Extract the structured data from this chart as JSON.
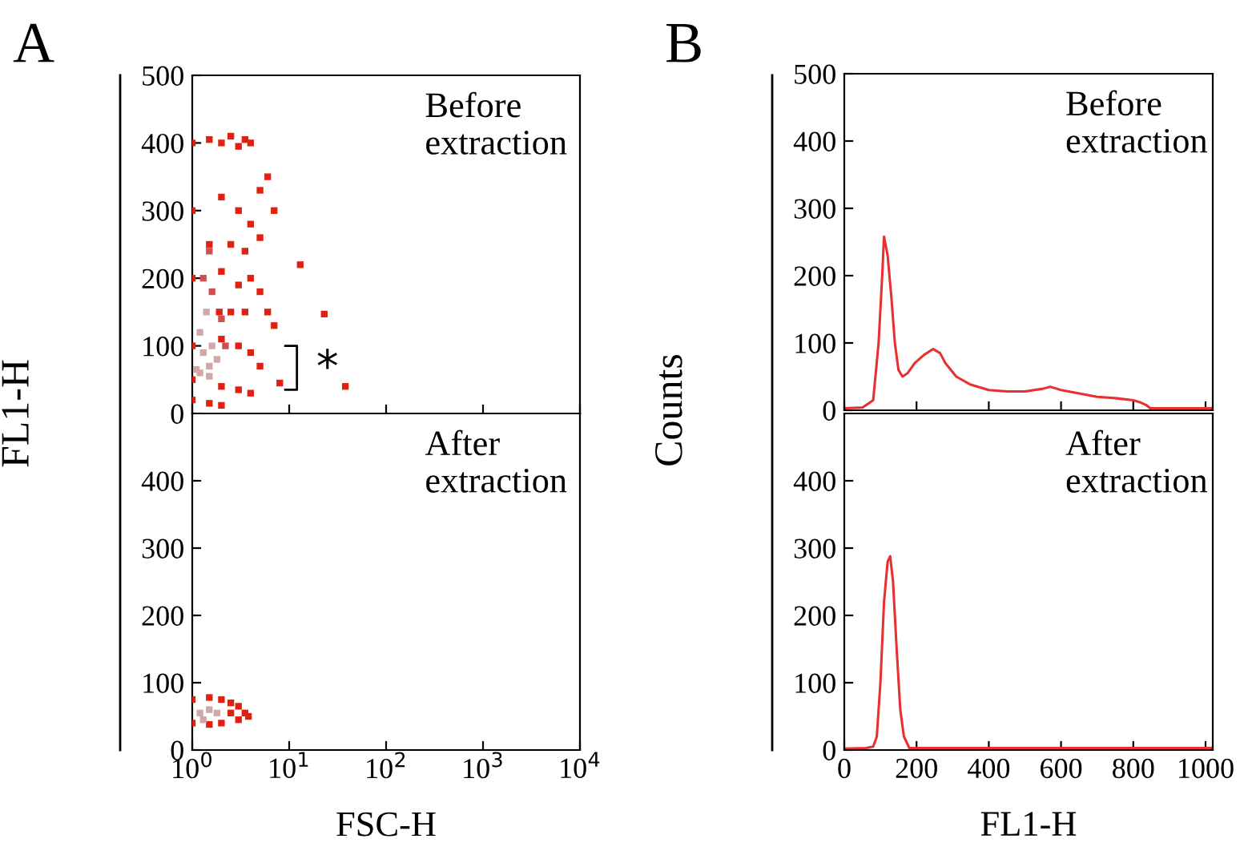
{
  "chart_data": [
    {
      "type": "scatter",
      "title": "A",
      "ylabel": "FL1-H",
      "log": "x",
      "xlim": [
        1,
        10000
      ],
      "xticks": [
        1,
        10,
        100,
        1000,
        10000
      ],
      "ylim": [
        0,
        500
      ],
      "yticks": [
        0,
        100,
        200,
        300,
        400,
        500
      ],
      "tick_labels": "y",
      "marker": "square",
      "grid": false,
      "annotations": [
        "Before\nextraction",
        "*"
      ],
      "series": [
        {
          "color": "#e02010",
          "x": [
            1,
            1.5,
            2,
            2.5,
            3,
            3.5,
            4,
            1,
            2,
            3,
            4,
            5,
            1,
            2,
            3,
            4,
            5,
            6,
            7,
            1,
            2,
            3,
            4,
            5,
            1,
            2,
            3,
            4,
            1,
            1.5,
            2,
            8,
            13,
            23,
            38,
            6,
            7,
            5,
            1.5,
            2.5,
            3.5,
            1.9,
            2.5,
            3.5
          ],
          "values": [
            400,
            405,
            400,
            410,
            395,
            405,
            400,
            300,
            320,
            300,
            280,
            260,
            200,
            210,
            190,
            200,
            180,
            150,
            130,
            100,
            110,
            100,
            90,
            70,
            50,
            40,
            35,
            30,
            20,
            15,
            12,
            45,
            220,
            147,
            40,
            350,
            300,
            330,
            250,
            250,
            240,
            150,
            150,
            150
          ]
        },
        {
          "color": "#d05050",
          "x": [
            1.3,
            1.6,
            2,
            2.2,
            1.5
          ],
          "values": [
            200,
            180,
            140,
            100,
            240
          ]
        },
        {
          "color": "#d0a8a8",
          "x": [
            1.2,
            1.5,
            1.3,
            1.6,
            1.2,
            1.4,
            1.8,
            1.1,
            1.5
          ],
          "values": [
            60,
            70,
            90,
            100,
            120,
            150,
            80,
            65,
            55
          ]
        }
      ]
    },
    {
      "type": "scatter",
      "xlabel": "FSC-H",
      "log": "x",
      "xlim": [
        1,
        10000
      ],
      "xticks": [
        {
          "value": 1,
          "label": "10$^{0}$"
        },
        {
          "value": 10,
          "label": "10$^{1}$"
        },
        {
          "value": 100,
          "label": "10$^{2}$"
        },
        {
          "value": 1000,
          "label": "10$^{3}$"
        },
        {
          "value": 10000,
          "label": "10$^{4}$"
        }
      ],
      "ylim": [
        0,
        500
      ],
      "yticks": [
        0,
        100,
        200,
        300,
        400
      ],
      "marker": "square",
      "grid": false,
      "annotations": [
        "After\nextraction"
      ],
      "series": [
        {
          "color": "#e02010",
          "x": [
            1,
            1.5,
            2,
            2.5,
            3,
            3.5,
            3.8,
            3,
            2,
            1.5,
            1,
            2.5
          ],
          "values": [
            75,
            78,
            75,
            70,
            65,
            55,
            50,
            45,
            40,
            38,
            40,
            55
          ]
        },
        {
          "color": "#d0a8a8",
          "x": [
            1.2,
            1.5,
            1.8,
            1.3
          ],
          "values": [
            55,
            60,
            55,
            45
          ]
        }
      ]
    },
    {
      "type": "line",
      "title": "B",
      "ylabel": "Counts",
      "xlim": [
        0,
        1020
      ],
      "xticks": [
        0,
        200,
        400,
        600,
        800,
        1000
      ],
      "ylim": [
        0,
        500
      ],
      "yticks": [
        0,
        100,
        200,
        300,
        400,
        500
      ],
      "tick_labels": "y",
      "grid": false,
      "annotations": [
        "Before\nextraction"
      ],
      "series": [
        {
          "color": "#e83030",
          "x": [
            0,
            50,
            80,
            95,
            105,
            110,
            120,
            130,
            140,
            150,
            161,
            175,
            195,
            220,
            246,
            265,
            280,
            310,
            350,
            400,
            450,
            500,
            550,
            570,
            600,
            650,
            700,
            750,
            800,
            818,
            835,
            847,
            870,
            1020
          ],
          "values": [
            3,
            4,
            15,
            100,
            200,
            258,
            230,
            170,
            100,
            60,
            50,
            55,
            70,
            82,
            91,
            85,
            70,
            50,
            38,
            30,
            28,
            28,
            32,
            35,
            30,
            25,
            20,
            18,
            15,
            12,
            8,
            3,
            3,
            3
          ]
        }
      ]
    },
    {
      "type": "line",
      "xlabel": "FL1-H",
      "xlim": [
        0,
        1020
      ],
      "xticks": [
        0,
        200,
        400,
        600,
        800,
        1000
      ],
      "ylim": [
        0,
        500
      ],
      "yticks": [
        0,
        100,
        200,
        300,
        400
      ],
      "grid": false,
      "annotations": [
        "After\nextraction"
      ],
      "series": [
        {
          "color": "#e83030",
          "x": [
            0,
            60,
            80,
            90,
            100,
            110,
            120,
            127,
            135,
            145,
            155,
            165,
            180,
            1020
          ],
          "values": [
            2,
            3,
            5,
            20,
            100,
            220,
            280,
            288,
            250,
            150,
            60,
            20,
            3,
            3
          ]
        }
      ]
    }
  ]
}
